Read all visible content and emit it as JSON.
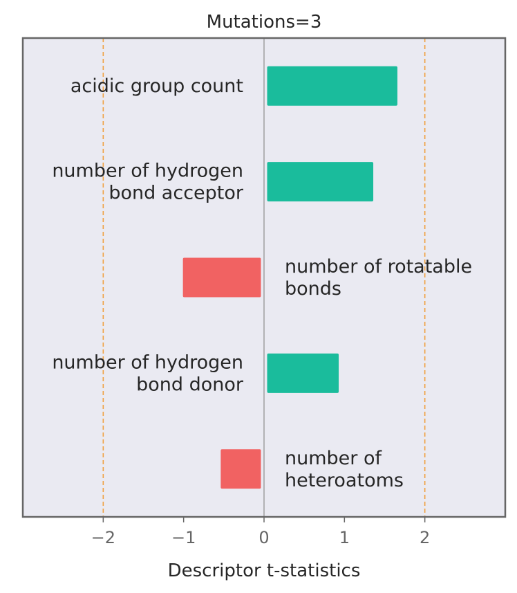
{
  "chart_data": {
    "type": "bar",
    "orientation": "horizontal",
    "title": "Mutations=3",
    "xlabel": "Descriptor t-statistics",
    "ylabel": "",
    "xlim": [
      -3,
      3
    ],
    "xticks": [
      -2,
      -1,
      0,
      1,
      2
    ],
    "xtick_labels": [
      "−2",
      "−1",
      "0",
      "1",
      "2"
    ],
    "reference_lines": [
      {
        "x": -2,
        "style": "dashed",
        "color": "#f0a040"
      },
      {
        "x": 0,
        "style": "solid",
        "color": "#8c8c8c"
      },
      {
        "x": 2,
        "style": "dashed",
        "color": "#f0a040"
      }
    ],
    "categories": [
      "acidic group count",
      "number of hydrogen bond acceptor",
      "number of rotatable bonds",
      "number of hydrogen bond donor",
      "number of heteroatoms"
    ],
    "label_lines": [
      [
        "acidic group count"
      ],
      [
        "number of hydrogen",
        "bond acceptor"
      ],
      [
        "number of rotatable",
        "bonds"
      ],
      [
        "number of hydrogen",
        "bond donor"
      ],
      [
        "number of",
        "heteroatoms"
      ]
    ],
    "values": [
      1.62,
      1.32,
      -0.97,
      0.89,
      -0.5
    ],
    "colors": {
      "positive": "#1abc9c",
      "negative": "#f16262",
      "plot_background": "#eaeaf2",
      "frame": "#666666"
    },
    "grid": false
  }
}
